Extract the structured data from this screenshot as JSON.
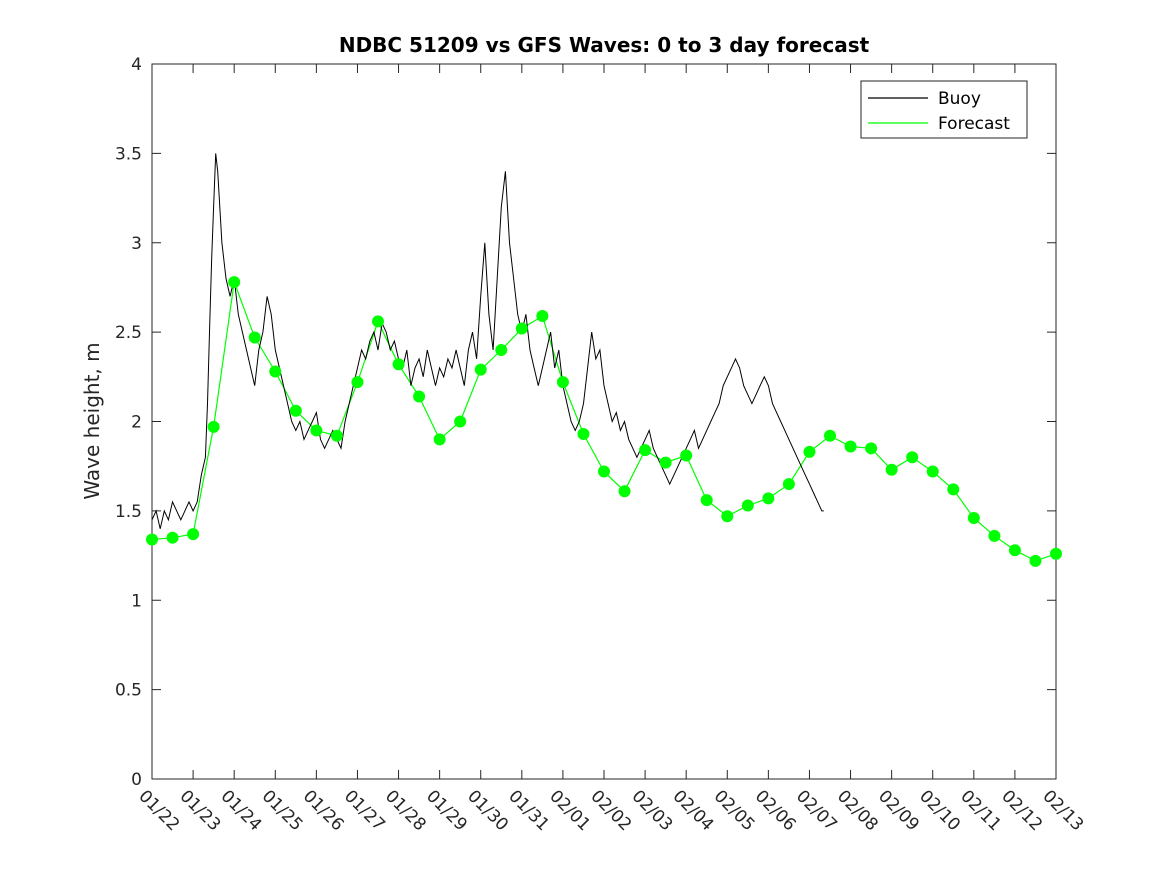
{
  "chart_data": {
    "type": "line",
    "title": "NDBC 51209 vs GFS Waves: 0 to 3 day forecast",
    "xlabel": "",
    "ylabel": "Wave height, m",
    "x_tick_labels": [
      "01/22",
      "01/23",
      "01/24",
      "01/25",
      "01/26",
      "01/27",
      "01/28",
      "01/29",
      "01/30",
      "01/31",
      "02/01",
      "02/02",
      "02/03",
      "02/04",
      "02/05",
      "02/06",
      "02/07",
      "02/08",
      "02/09",
      "02/10",
      "02/11",
      "02/12",
      "02/13"
    ],
    "y_ticks": [
      0,
      0.5,
      1,
      1.5,
      2,
      2.5,
      3,
      3.5,
      4
    ],
    "ylim": [
      0,
      4
    ],
    "grid": false,
    "legend_position": "top-right",
    "colors": {
      "buoy": "#000000",
      "forecast": "#00ff00"
    },
    "series": [
      {
        "name": "Buoy",
        "kind": "line",
        "points": [
          [
            0.0,
            1.45
          ],
          [
            0.1,
            1.5
          ],
          [
            0.2,
            1.4
          ],
          [
            0.3,
            1.5
          ],
          [
            0.4,
            1.45
          ],
          [
            0.5,
            1.55
          ],
          [
            0.6,
            1.5
          ],
          [
            0.7,
            1.45
          ],
          [
            0.8,
            1.5
          ],
          [
            0.9,
            1.55
          ],
          [
            1.0,
            1.5
          ],
          [
            1.1,
            1.55
          ],
          [
            1.2,
            1.7
          ],
          [
            1.3,
            1.8
          ],
          [
            1.35,
            2.1
          ],
          [
            1.4,
            2.5
          ],
          [
            1.45,
            2.9
          ],
          [
            1.5,
            3.2
          ],
          [
            1.55,
            3.5
          ],
          [
            1.6,
            3.4
          ],
          [
            1.65,
            3.2
          ],
          [
            1.7,
            3.0
          ],
          [
            1.8,
            2.8
          ],
          [
            1.9,
            2.7
          ],
          [
            2.0,
            2.8
          ],
          [
            2.1,
            2.6
          ],
          [
            2.2,
            2.5
          ],
          [
            2.3,
            2.4
          ],
          [
            2.4,
            2.3
          ],
          [
            2.5,
            2.2
          ],
          [
            2.6,
            2.4
          ],
          [
            2.7,
            2.5
          ],
          [
            2.8,
            2.7
          ],
          [
            2.9,
            2.6
          ],
          [
            3.0,
            2.4
          ],
          [
            3.1,
            2.3
          ],
          [
            3.2,
            2.2
          ],
          [
            3.3,
            2.1
          ],
          [
            3.4,
            2.0
          ],
          [
            3.5,
            1.95
          ],
          [
            3.6,
            2.0
          ],
          [
            3.7,
            1.9
          ],
          [
            3.8,
            1.95
          ],
          [
            3.9,
            2.0
          ],
          [
            4.0,
            2.05
          ],
          [
            4.1,
            1.9
          ],
          [
            4.2,
            1.85
          ],
          [
            4.3,
            1.9
          ],
          [
            4.4,
            1.95
          ],
          [
            4.5,
            1.9
          ],
          [
            4.6,
            1.85
          ],
          [
            4.7,
            2.0
          ],
          [
            4.8,
            2.1
          ],
          [
            4.9,
            2.2
          ],
          [
            5.0,
            2.3
          ],
          [
            5.1,
            2.4
          ],
          [
            5.2,
            2.35
          ],
          [
            5.3,
            2.45
          ],
          [
            5.4,
            2.5
          ],
          [
            5.5,
            2.4
          ],
          [
            5.6,
            2.55
          ],
          [
            5.7,
            2.5
          ],
          [
            5.8,
            2.4
          ],
          [
            5.9,
            2.45
          ],
          [
            6.0,
            2.35
          ],
          [
            6.1,
            2.3
          ],
          [
            6.2,
            2.4
          ],
          [
            6.3,
            2.2
          ],
          [
            6.4,
            2.3
          ],
          [
            6.5,
            2.35
          ],
          [
            6.6,
            2.25
          ],
          [
            6.7,
            2.4
          ],
          [
            6.8,
            2.3
          ],
          [
            6.9,
            2.2
          ],
          [
            7.0,
            2.3
          ],
          [
            7.1,
            2.25
          ],
          [
            7.2,
            2.35
          ],
          [
            7.3,
            2.3
          ],
          [
            7.4,
            2.4
          ],
          [
            7.5,
            2.3
          ],
          [
            7.6,
            2.2
          ],
          [
            7.7,
            2.4
          ],
          [
            7.8,
            2.5
          ],
          [
            7.9,
            2.35
          ],
          [
            8.0,
            2.7
          ],
          [
            8.1,
            3.0
          ],
          [
            8.2,
            2.6
          ],
          [
            8.3,
            2.4
          ],
          [
            8.4,
            2.8
          ],
          [
            8.5,
            3.2
          ],
          [
            8.6,
            3.4
          ],
          [
            8.7,
            3.0
          ],
          [
            8.8,
            2.8
          ],
          [
            8.9,
            2.6
          ],
          [
            9.0,
            2.5
          ],
          [
            9.1,
            2.6
          ],
          [
            9.2,
            2.4
          ],
          [
            9.3,
            2.3
          ],
          [
            9.4,
            2.2
          ],
          [
            9.5,
            2.3
          ],
          [
            9.6,
            2.4
          ],
          [
            9.7,
            2.5
          ],
          [
            9.8,
            2.3
          ],
          [
            9.9,
            2.4
          ],
          [
            10.0,
            2.2
          ],
          [
            10.1,
            2.1
          ],
          [
            10.2,
            2.0
          ],
          [
            10.3,
            1.95
          ],
          [
            10.4,
            2.0
          ],
          [
            10.5,
            2.1
          ],
          [
            10.6,
            2.3
          ],
          [
            10.7,
            2.5
          ],
          [
            10.8,
            2.35
          ],
          [
            10.9,
            2.4
          ],
          [
            11.0,
            2.2
          ],
          [
            11.1,
            2.1
          ],
          [
            11.2,
            2.0
          ],
          [
            11.3,
            2.05
          ],
          [
            11.4,
            1.95
          ],
          [
            11.5,
            2.0
          ],
          [
            11.6,
            1.9
          ],
          [
            11.7,
            1.85
          ],
          [
            11.8,
            1.8
          ],
          [
            11.9,
            1.85
          ],
          [
            12.0,
            1.9
          ],
          [
            12.1,
            1.95
          ],
          [
            12.2,
            1.85
          ],
          [
            12.3,
            1.8
          ],
          [
            12.4,
            1.75
          ],
          [
            12.5,
            1.7
          ],
          [
            12.6,
            1.65
          ],
          [
            12.7,
            1.7
          ],
          [
            12.8,
            1.75
          ],
          [
            12.9,
            1.8
          ],
          [
            13.0,
            1.85
          ],
          [
            13.1,
            1.9
          ],
          [
            13.2,
            1.95
          ],
          [
            13.3,
            1.85
          ],
          [
            13.4,
            1.9
          ],
          [
            13.5,
            1.95
          ],
          [
            13.6,
            2.0
          ],
          [
            13.7,
            2.05
          ],
          [
            13.8,
            2.1
          ],
          [
            13.9,
            2.2
          ],
          [
            14.0,
            2.25
          ],
          [
            14.1,
            2.3
          ],
          [
            14.2,
            2.35
          ],
          [
            14.3,
            2.3
          ],
          [
            14.4,
            2.2
          ],
          [
            14.5,
            2.15
          ],
          [
            14.6,
            2.1
          ],
          [
            14.7,
            2.15
          ],
          [
            14.8,
            2.2
          ],
          [
            14.9,
            2.25
          ],
          [
            15.0,
            2.2
          ],
          [
            15.1,
            2.1
          ],
          [
            15.2,
            2.05
          ],
          [
            15.3,
            2.0
          ],
          [
            15.4,
            1.95
          ],
          [
            15.5,
            1.9
          ],
          [
            15.6,
            1.85
          ],
          [
            15.7,
            1.8
          ],
          [
            15.8,
            1.75
          ],
          [
            15.9,
            1.7
          ],
          [
            16.0,
            1.65
          ],
          [
            16.1,
            1.6
          ],
          [
            16.2,
            1.55
          ],
          [
            16.3,
            1.5
          ],
          [
            16.35,
            1.5
          ]
        ]
      },
      {
        "name": "Forecast",
        "kind": "line",
        "points": [
          [
            0.0,
            1.34
          ],
          [
            0.5,
            1.35
          ],
          [
            1.0,
            1.37
          ],
          [
            1.5,
            1.97
          ],
          [
            2.0,
            2.78
          ],
          [
            2.5,
            2.47
          ],
          [
            3.0,
            2.28
          ],
          [
            3.5,
            2.06
          ],
          [
            4.0,
            1.95
          ],
          [
            4.5,
            1.92
          ],
          [
            5.0,
            2.22
          ],
          [
            5.5,
            2.56
          ],
          [
            6.0,
            2.32
          ],
          [
            6.5,
            2.14
          ],
          [
            7.0,
            1.9
          ],
          [
            7.5,
            2.0
          ],
          [
            8.0,
            2.29
          ],
          [
            8.5,
            2.4
          ],
          [
            9.0,
            2.52
          ],
          [
            9.5,
            2.59
          ],
          [
            10.0,
            2.22
          ],
          [
            10.5,
            1.93
          ],
          [
            11.0,
            1.72
          ],
          [
            11.5,
            1.61
          ],
          [
            12.0,
            1.84
          ],
          [
            12.5,
            1.77
          ],
          [
            13.0,
            1.81
          ],
          [
            13.5,
            1.56
          ],
          [
            14.0,
            1.47
          ],
          [
            14.5,
            1.53
          ],
          [
            15.0,
            1.57
          ],
          [
            15.5,
            1.65
          ],
          [
            16.0,
            1.83
          ],
          [
            16.5,
            1.92
          ],
          [
            17.0,
            1.86
          ],
          [
            17.5,
            1.85
          ],
          [
            18.0,
            1.73
          ],
          [
            18.5,
            1.8
          ],
          [
            19.0,
            1.72
          ],
          [
            19.5,
            1.62
          ],
          [
            20.0,
            1.46
          ],
          [
            20.5,
            1.36
          ],
          [
            21.0,
            1.28
          ],
          [
            21.5,
            1.22
          ],
          [
            22.0,
            1.26
          ]
        ]
      }
    ]
  }
}
